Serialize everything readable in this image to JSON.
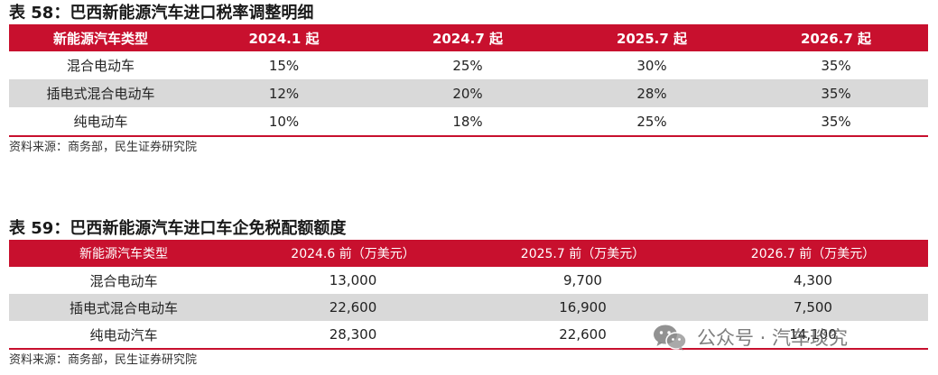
{
  "table1": {
    "title": "表 58：巴西新能源汽车进口税率调整明细",
    "headers": [
      "新能源汽车类型",
      "2024.1 起",
      "2024.7 起",
      "2025.7 起",
      "2026.7 起"
    ],
    "rows": [
      [
        "混合电动车",
        "15%",
        "25%",
        "30%",
        "35%"
      ],
      [
        "插电式混合电动车",
        "12%",
        "20%",
        "28%",
        "35%"
      ],
      [
        "纯电动车",
        "10%",
        "18%",
        "25%",
        "35%"
      ]
    ],
    "source": "资料来源：商务部，民生证券研究院"
  },
  "table2": {
    "title": "表 59：巴西新能源汽车进口车企免税配额额度",
    "headers": [
      "新能源汽车类型",
      "2024.6 前（万美元）",
      "2025.7 前（万美元）",
      "2026.7 前（万美元）"
    ],
    "rows": [
      [
        "混合电动车",
        "13,000",
        "9,700",
        "4,300"
      ],
      [
        "插电式混合电动车",
        "22,600",
        "16,900",
        "7,500"
      ],
      [
        "纯电动汽车",
        "28,300",
        "22,600",
        "14,100"
      ]
    ],
    "source": "资料来源：商务部，民生证券研究院"
  },
  "watermark": {
    "icon": "wechat-icon",
    "text": "公众号 · 汽车琰究"
  },
  "colors": {
    "header_red": "#c8102e",
    "row_shade": "#d9d9d9"
  }
}
